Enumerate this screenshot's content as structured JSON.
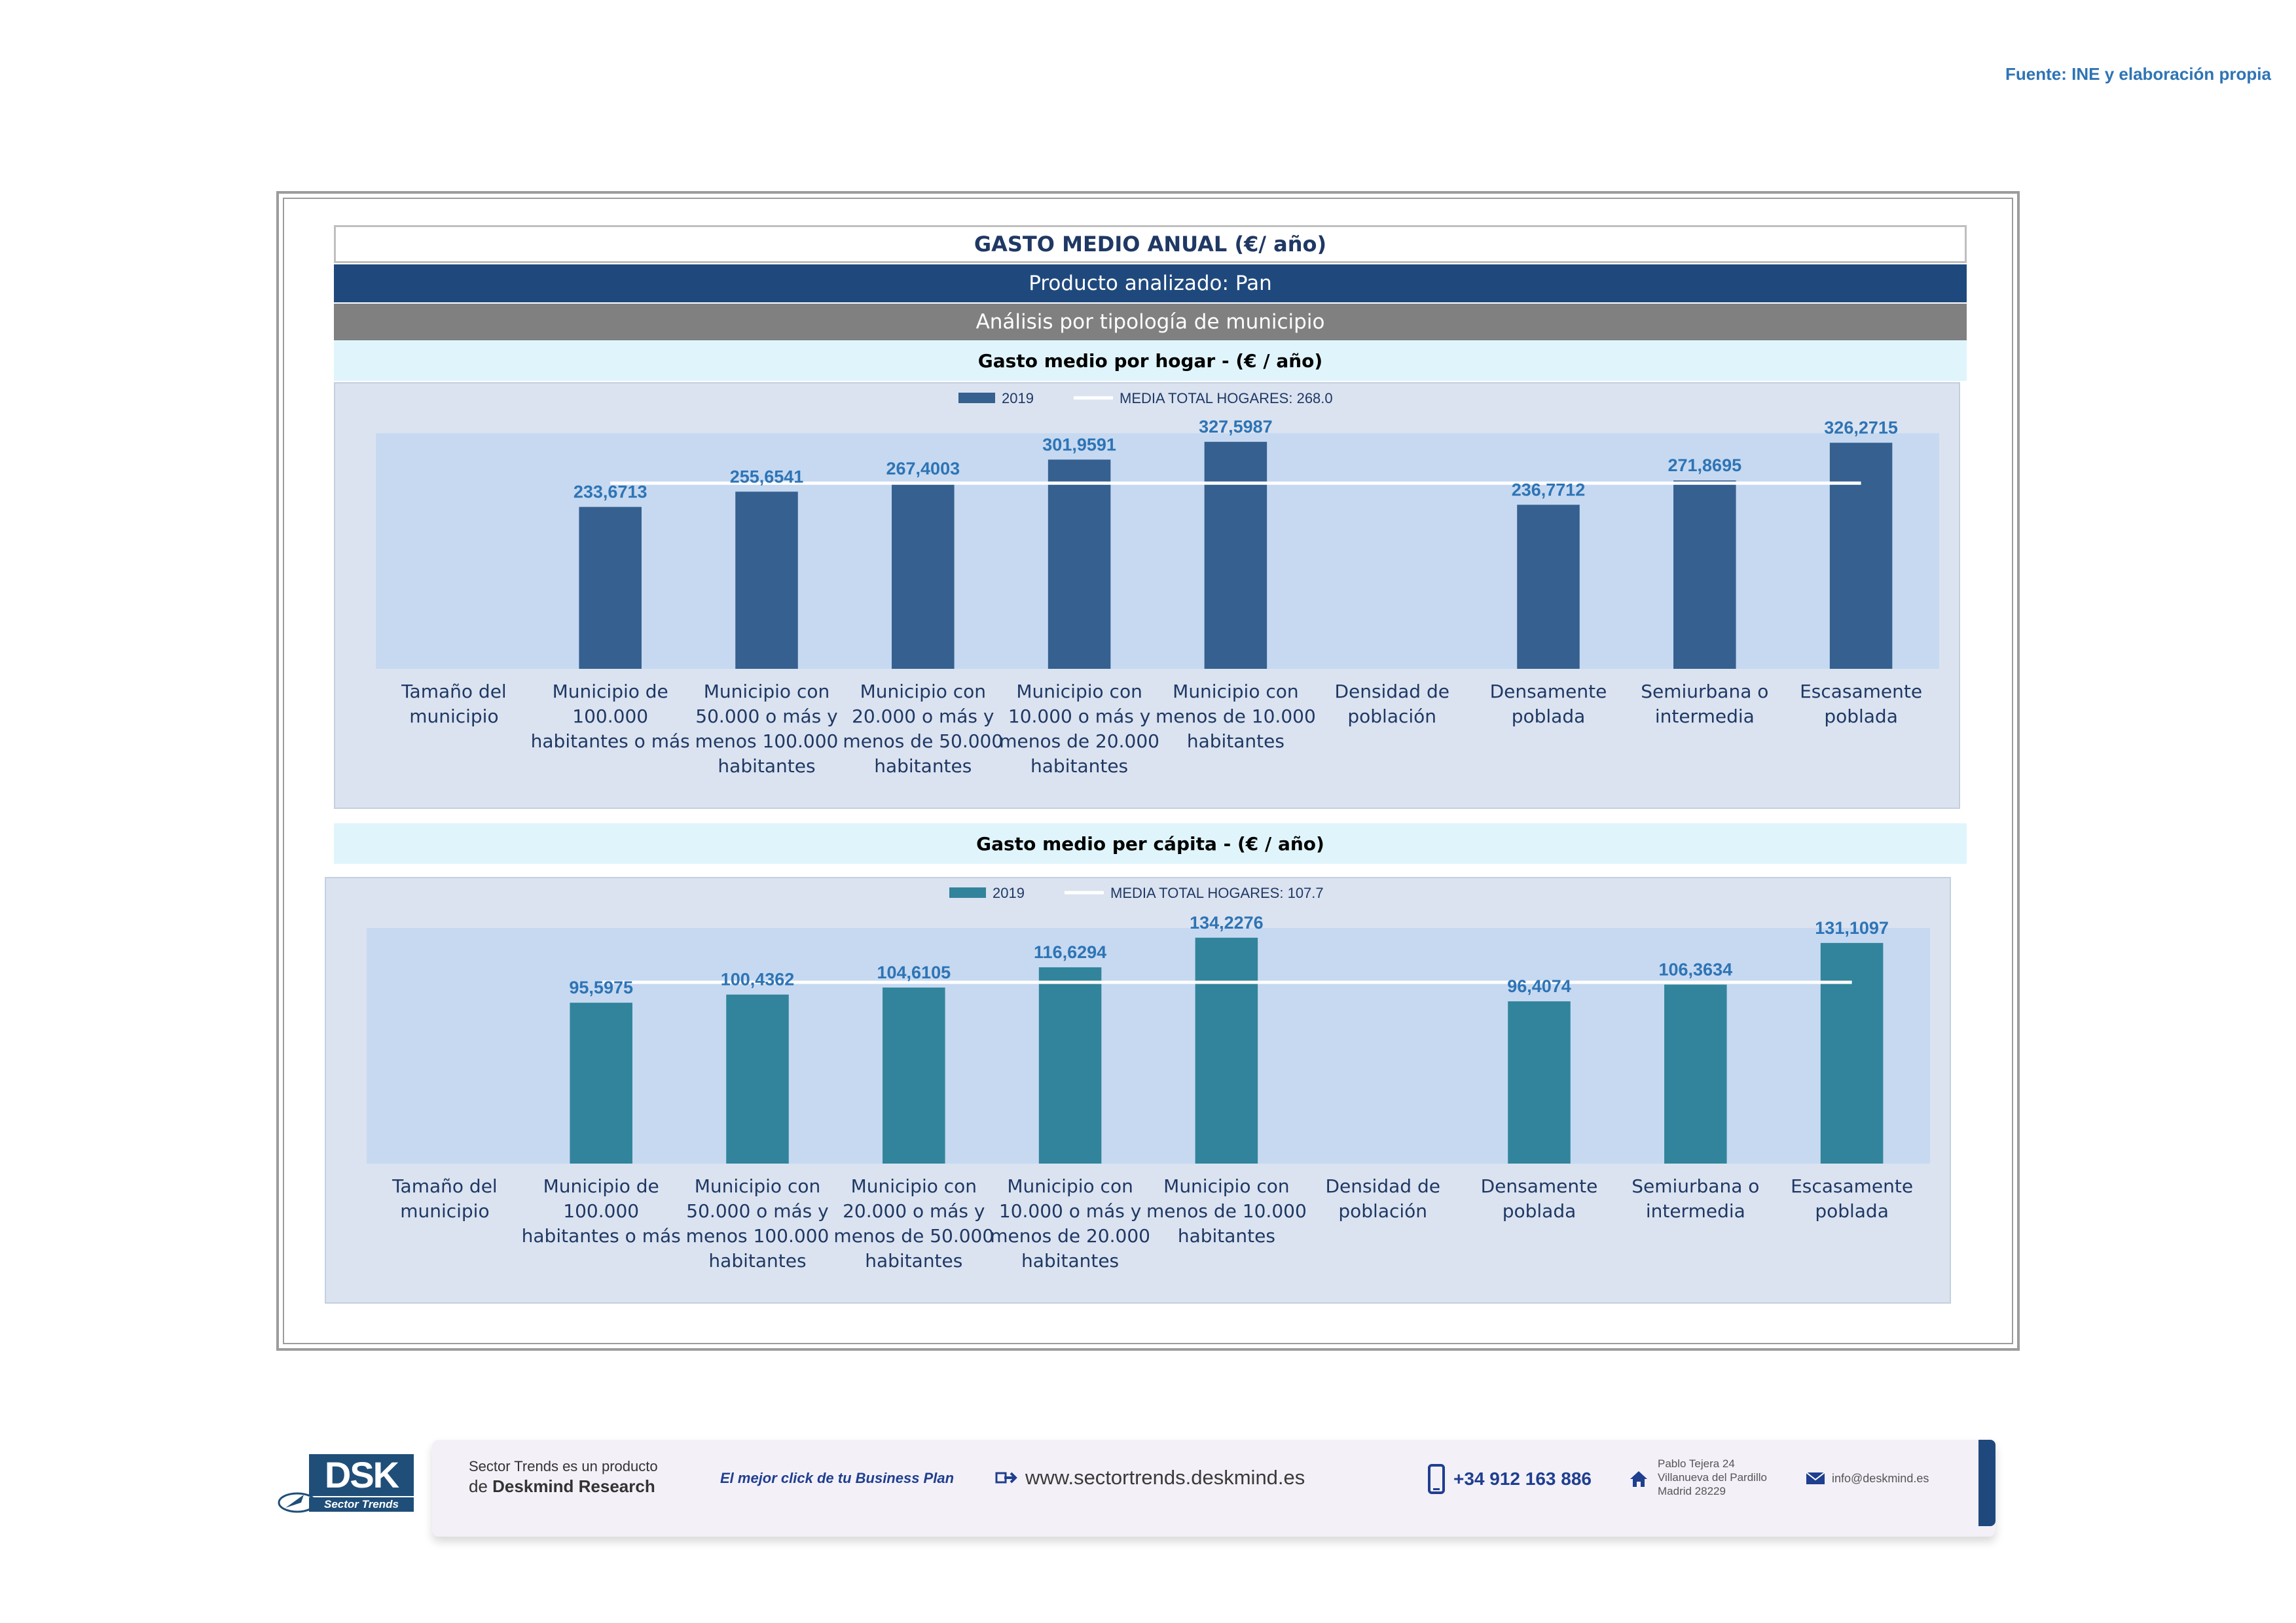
{
  "source_note": "Fuente: INE y elaboración propia",
  "header": {
    "title": "GASTO MEDIO ANUAL (€/ año)",
    "product": "Producto analizado: Pan",
    "analysis": "Análisis por tipología de municipio"
  },
  "colors": {
    "bar_hogar": "#35608f",
    "bar_capita": "#31849b",
    "label": "#2e74b5",
    "average_line": "#ffffff",
    "title_band": "#1f497d",
    "analysis_band": "#808080"
  },
  "chart_data": [
    {
      "type": "bar",
      "title": "Gasto medio por hogar -  (€ / año)",
      "categories": [
        "Tamaño del municipio",
        "Municipio de 100.000 habitantes o más",
        "Municipio con 50.000 o más y menos 100.000 habitantes",
        "Municipio con 20.000 o más y menos de 50.000 habitantes",
        "Municipio con 10.000 o más y menos de 20.000 habitantes",
        "Municipio con menos de 10.000 habitantes",
        "Densidad de población",
        "Densamente poblada",
        "Semiurbana o intermedia",
        "Escasamente poblada"
      ],
      "series": [
        {
          "name": "2019",
          "values": [
            null,
            233.6713,
            255.6541,
            267.4003,
            301.9591,
            327.5987,
            null,
            236.7712,
            271.8695,
            326.2715
          ]
        }
      ],
      "data_labels": [
        "",
        "233,6713",
        "255,6541",
        "267,4003",
        "301,9591",
        "327,5987",
        "",
        "236,7712",
        "271,8695",
        "326,2715"
      ],
      "average": {
        "name": "MEDIA TOTAL  HOGARES:",
        "value": 268.0,
        "label": "268.0"
      },
      "ylim": [
        0,
        340
      ],
      "legend": "top-center",
      "grid": false
    },
    {
      "type": "bar",
      "title": "Gasto medio per cápita -  (€ / año)",
      "categories": [
        "Tamaño del municipio",
        "Municipio de 100.000 habitantes o más",
        "Municipio con 50.000 o más y menos 100.000 habitantes",
        "Municipio con 20.000 o más y menos de 50.000 habitantes",
        "Municipio con 10.000 o más y menos de 20.000 habitantes",
        "Municipio con menos de 10.000 habitantes",
        "Densidad de población",
        "Densamente poblada",
        "Semiurbana o intermedia",
        "Escasamente poblada"
      ],
      "series": [
        {
          "name": "2019",
          "values": [
            null,
            95.5975,
            100.4362,
            104.6105,
            116.6294,
            134.2276,
            null,
            96.4074,
            106.3634,
            131.1097
          ]
        }
      ],
      "data_labels": [
        "",
        "95,5975",
        "100,4362",
        "104,6105",
        "116,6294",
        "134,2276",
        "",
        "96,4074",
        "106,3634",
        "131,1097"
      ],
      "average": {
        "name": "MEDIA TOTAL  HOGARES:",
        "value": 107.7,
        "label": "107.7"
      },
      "ylim": [
        0,
        140
      ],
      "legend": "top-center",
      "grid": false
    }
  ],
  "footer": {
    "logo_text": "DSK",
    "logo_sub": "Sector Trends",
    "product_line1": "Sector Trends es un producto",
    "product_line2_prefix": "de ",
    "product_line2_brand": "Deskmind Research",
    "slogan": "El mejor click de tu Business Plan",
    "website": "www.sectortrends.deskmind.es",
    "phone": "+34 912 163 886",
    "address": [
      "Pablo Tejera 24",
      "Villanueva del Pardillo",
      "Madrid 28229"
    ],
    "email": "info@deskmind.es"
  }
}
